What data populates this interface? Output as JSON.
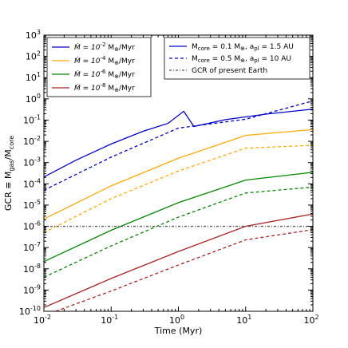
{
  "chart_data": {
    "type": "line",
    "xlabel": "Time (Myr)",
    "ylabel_parts": [
      "GCR ≡ M",
      "gas",
      "/M",
      "core"
    ],
    "xscale": "log",
    "yscale": "log",
    "xlim": [
      0.01,
      100
    ],
    "ylim": [
      1e-10,
      1000
    ],
    "grid": false,
    "x_ticks": [
      {
        "value": 0.01,
        "base": "10",
        "exp": "-2"
      },
      {
        "value": 0.1,
        "base": "10",
        "exp": "-1"
      },
      {
        "value": 1,
        "base": "10",
        "exp": "0"
      },
      {
        "value": 10,
        "base": "10",
        "exp": "1"
      },
      {
        "value": 100,
        "base": "10",
        "exp": "2"
      }
    ],
    "y_ticks": [
      {
        "value": 1e-10,
        "base": "10",
        "exp": "-10"
      },
      {
        "value": 1e-09,
        "base": "10",
        "exp": "-9"
      },
      {
        "value": 1e-08,
        "base": "10",
        "exp": "-8"
      },
      {
        "value": 1e-07,
        "base": "10",
        "exp": "-7"
      },
      {
        "value": 1e-06,
        "base": "10",
        "exp": "-6"
      },
      {
        "value": 1e-05,
        "base": "10",
        "exp": "-5"
      },
      {
        "value": 0.0001,
        "base": "10",
        "exp": "-4"
      },
      {
        "value": 0.001,
        "base": "10",
        "exp": "-3"
      },
      {
        "value": 0.01,
        "base": "10",
        "exp": "-2"
      },
      {
        "value": 0.1,
        "base": "10",
        "exp": "-1"
      },
      {
        "value": 1,
        "base": "10",
        "exp": "0"
      },
      {
        "value": 10,
        "base": "10",
        "exp": "1"
      },
      {
        "value": 100,
        "base": "10",
        "exp": "2"
      },
      {
        "value": 1000,
        "base": "10",
        "exp": "3"
      }
    ],
    "series": [
      {
        "mdot": "-2",
        "color": "#0000cc",
        "style": "solid",
        "points": [
          [
            0.01,
            0.00021
          ],
          [
            0.03,
            0.0013
          ],
          [
            0.1,
            0.0075
          ],
          [
            0.3,
            0.03
          ],
          [
            0.7,
            0.07
          ],
          [
            1.2,
            0.26
          ],
          [
            1.7,
            0.05
          ],
          [
            5,
            0.105
          ],
          [
            20,
            0.19
          ],
          [
            100,
            0.33
          ]
        ]
      },
      {
        "mdot": "-2",
        "color": "#0000cc",
        "style": "dashed",
        "points": [
          [
            0.01,
            5e-05
          ],
          [
            0.1,
            0.0018
          ],
          [
            1,
            0.042
          ],
          [
            10,
            0.11
          ],
          [
            100,
            0.8
          ]
        ]
      },
      {
        "mdot": "-4",
        "color": "#ffaa00",
        "style": "solid",
        "points": [
          [
            0.01,
            2.2e-06
          ],
          [
            0.1,
            8e-05
          ],
          [
            1,
            0.0016
          ],
          [
            10,
            0.019
          ],
          [
            100,
            0.036
          ]
        ]
      },
      {
        "mdot": "-4",
        "color": "#ffaa00",
        "style": "dashed",
        "points": [
          [
            0.01,
            5e-07
          ],
          [
            0.1,
            2e-05
          ],
          [
            1,
            0.0004
          ],
          [
            10,
            0.0048
          ],
          [
            100,
            0.0065
          ]
        ]
      },
      {
        "mdot": "-6",
        "color": "#008800",
        "style": "solid",
        "points": [
          [
            0.01,
            2.2e-08
          ],
          [
            0.1,
            6.5e-07
          ],
          [
            1,
            1.3e-05
          ],
          [
            10,
            0.00015
          ],
          [
            100,
            0.00035
          ]
        ]
      },
      {
        "mdot": "-6",
        "color": "#008800",
        "style": "dashed",
        "points": [
          [
            0.01,
            4e-09
          ],
          [
            0.1,
            1.2e-07
          ],
          [
            1,
            2.7e-06
          ],
          [
            10,
            3.7e-05
          ],
          [
            100,
            7e-05
          ]
        ]
      },
      {
        "mdot": "-8",
        "color": "#aa2222",
        "style": "solid",
        "points": [
          [
            0.01,
            1.5e-10
          ],
          [
            0.1,
            3.5e-09
          ],
          [
            1,
            6.5e-08
          ],
          [
            10,
            1e-06
          ],
          [
            100,
            3.8e-06
          ]
        ]
      },
      {
        "mdot": "-8",
        "color": "#aa2222",
        "style": "dashed",
        "points": [
          [
            0.015,
            1e-10
          ],
          [
            0.1,
            9e-10
          ],
          [
            1,
            1.5e-08
          ],
          [
            10,
            2.3e-07
          ],
          [
            100,
            7e-07
          ]
        ]
      },
      {
        "mdot": "",
        "color": "#555555",
        "style": "dotdash",
        "points": [
          [
            0.01,
            1e-06
          ],
          [
            100,
            1e-06
          ]
        ]
      }
    ],
    "legend_mdot": {
      "placement": "top-left",
      "entries": [
        {
          "color": "#0000cc",
          "prefix": "Ṁ = 10",
          "exp": "-2",
          "unit": " M",
          "unit_sub": "⊕",
          "suffix": "/Myr"
        },
        {
          "color": "#ffaa00",
          "prefix": "Ṁ = 10",
          "exp": "-4",
          "unit": " M",
          "unit_sub": "⊕",
          "suffix": "/Myr"
        },
        {
          "color": "#008800",
          "prefix": "Ṁ = 10",
          "exp": "-6",
          "unit": " M",
          "unit_sub": "⊕",
          "suffix": "/Myr"
        },
        {
          "color": "#aa2222",
          "prefix": "Ṁ = 10",
          "exp": "-8",
          "unit": " M",
          "unit_sub": "⊕",
          "suffix": "/Myr"
        }
      ]
    },
    "legend_style": {
      "placement": "top-right",
      "entries": [
        {
          "style": "solid",
          "text_a": "M",
          "sub_a": "core",
          "text_b": " = 0.1 M",
          "sub_b": "⊕",
          "text_c": ", a",
          "sub_c": "pl",
          "text_d": " = 1.5 AU"
        },
        {
          "style": "dashed",
          "text_a": "M",
          "sub_a": "core",
          "text_b": " = 0.5 M",
          "sub_b": "⊕",
          "text_c": ", a",
          "sub_c": "pl",
          "text_d": " = 10 AU"
        },
        {
          "style": "dotdash",
          "text_a": "GCR of present Earth",
          "sub_a": "",
          "text_b": "",
          "sub_b": "",
          "text_c": "",
          "sub_c": "",
          "text_d": ""
        }
      ]
    }
  }
}
